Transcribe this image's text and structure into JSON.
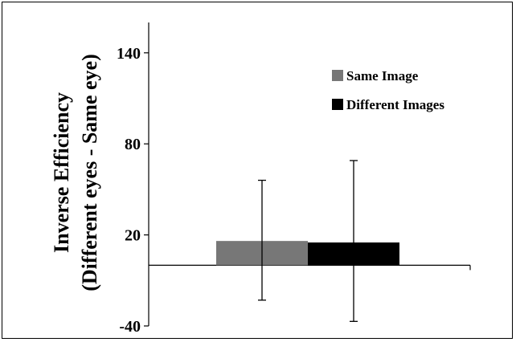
{
  "chart_data": {
    "type": "bar",
    "title": "",
    "xlabel": "",
    "ylabel_lines": [
      "Inverse Efficiency",
      "(Different eyes - Same eye)"
    ],
    "ylim": [
      -40,
      160
    ],
    "yticks": [
      -40,
      20,
      80,
      140
    ],
    "categories": [
      ""
    ],
    "series": [
      {
        "name": "Same Image",
        "values": [
          16
        ],
        "error": [
          [
            -23
          ],
          [
            56
          ]
        ],
        "color": "#777777"
      },
      {
        "name": "Different Images",
        "values": [
          15
        ],
        "error": [
          [
            -37
          ],
          [
            69
          ]
        ],
        "color": "#000000"
      }
    ],
    "legend_position": "top-right",
    "grid": false
  }
}
